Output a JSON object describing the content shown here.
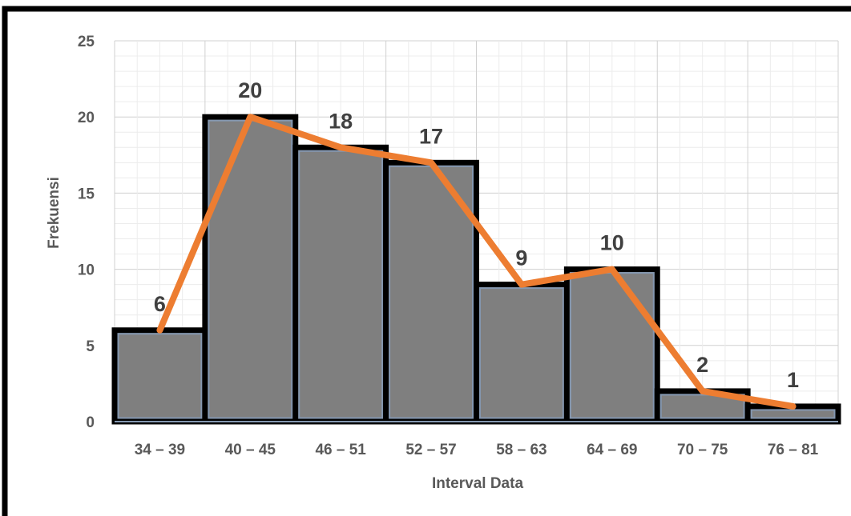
{
  "chart_data": {
    "type": "bar",
    "categories": [
      "34 – 39",
      "40 – 45",
      "46 – 51",
      "52 – 57",
      "58 – 63",
      "64 – 69",
      "70 – 75",
      "76 – 81"
    ],
    "values": [
      6,
      20,
      18,
      17,
      9,
      10,
      2,
      1
    ],
    "series": [
      {
        "values": [
          6,
          20,
          18,
          17,
          9,
          10,
          2,
          1
        ],
        "color": "#7f7f7f"
      },
      {
        "type": "line",
        "values": [
          6,
          20,
          18,
          17,
          9,
          10,
          2,
          1
        ],
        "color": "#ed7d31"
      }
    ],
    "data_labels": [
      "6",
      "20",
      "18",
      "17",
      "9",
      "10",
      "2",
      "1"
    ],
    "xlabel": "Interval Data",
    "ylabel": "Frekuensi",
    "ylim": [
      0,
      25
    ],
    "yticks": [
      "0",
      "5",
      "10",
      "15",
      "20",
      "25"
    ],
    "grid": true,
    "colors": {
      "bar_fill": "#7f7f7f",
      "bar_outline": "#000000",
      "bar_inner_edge": "#8497b0",
      "line": "#ed7d31",
      "grid": "#d9d9d9",
      "frame": "#000000"
    }
  }
}
